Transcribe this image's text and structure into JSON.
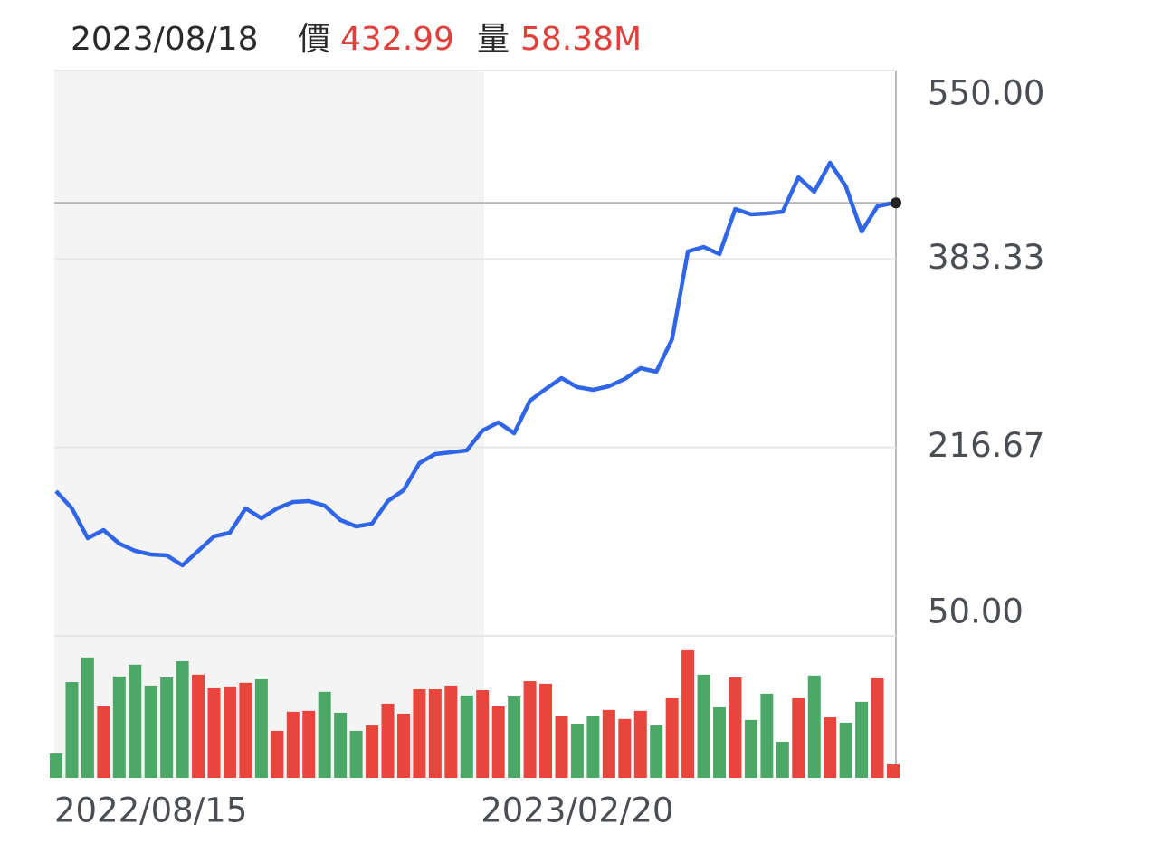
{
  "chart_data": {
    "type": "price-volume",
    "header": {
      "date": "2023/08/18",
      "price_label": "價",
      "price": 432.99,
      "volume_label": "量",
      "volume": "58.38M"
    },
    "categories": [
      "2022/08/15",
      null,
      null,
      null,
      null,
      null,
      null,
      null,
      null,
      null,
      null,
      null,
      null,
      null,
      null,
      null,
      null,
      null,
      null,
      null,
      null,
      null,
      null,
      null,
      null,
      null,
      null,
      "2023/02/20",
      null,
      null,
      null,
      null,
      null,
      null,
      null,
      null,
      null,
      null,
      null,
      null,
      null,
      null,
      null,
      null,
      null,
      null,
      null,
      null,
      null,
      null,
      null,
      null,
      null,
      null
    ],
    "series": [
      {
        "name": "價",
        "color": "#2f65e8",
        "values": [
          178,
          162.8,
          136.4,
          143.6,
          131.6,
          125.2,
          122,
          121.2,
          112.4,
          125.2,
          138,
          141.2,
          162.8,
          154,
          162.8,
          168.4,
          169.2,
          165.2,
          152.4,
          146.8,
          149.2,
          169.2,
          178.8,
          202.8,
          210.8,
          212.4,
          214,
          231.6,
          238.8,
          229.2,
          258,
          268.4,
          278,
          270,
          267.6,
          270.8,
          277.2,
          286.8,
          283.6,
          312.4,
          390,
          394,
          387.6,
          427.6,
          422.8,
          423.6,
          425.2,
          455.6,
          442.8,
          468.4,
          447.6,
          407.6,
          430,
          432.99
        ]
      },
      {
        "name": "量",
        "colors": [
          "#4ca866",
          "#4ca866",
          "#4ca866",
          "#e8453c",
          "#4ca866",
          "#4ca866",
          "#4ca866",
          "#4ca866",
          "#4ca866",
          "#e8453c",
          "#e8453c",
          "#e8453c",
          "#e8453c",
          "#4ca866",
          "#e8453c",
          "#e8453c",
          "#e8453c",
          "#4ca866",
          "#4ca866",
          "#4ca866",
          "#e8453c",
          "#e8453c",
          "#e8453c",
          "#e8453c",
          "#e8453c",
          "#e8453c",
          "#4ca866",
          "#e8453c",
          "#e8453c",
          "#4ca866",
          "#e8453c",
          "#e8453c",
          "#e8453c",
          "#4ca866",
          "#4ca866",
          "#e8453c",
          "#e8453c",
          "#e8453c",
          "#4ca866",
          "#e8453c",
          "#e8453c",
          "#4ca866",
          "#4ca866",
          "#e8453c",
          "#4ca866",
          "#4ca866",
          "#4ca866",
          "#e8453c",
          "#4ca866",
          "#e8453c",
          "#4ca866",
          "#4ca866",
          "#e8453c",
          "#e8453c"
        ],
        "values": [
          105,
          413,
          519,
          308,
          437,
          488,
          398,
          433,
          503,
          445,
          386,
          394,
          410,
          425,
          203,
          285,
          289,
          371,
          281,
          203,
          226,
          320,
          277,
          382,
          382,
          398,
          355,
          378,
          308,
          351,
          417,
          406,
          265,
          234,
          265,
          293,
          254,
          289,
          226,
          343,
          550,
          445,
          304,
          433,
          250,
          363,
          156,
          343,
          441,
          261,
          238,
          328,
          429,
          58.38
        ]
      }
    ],
    "ylim": [
      50,
      550
    ],
    "yticks": [
      {
        "value": 550,
        "label": "550.00"
      },
      {
        "value": 383.33,
        "label": "383.33"
      },
      {
        "value": 216.67,
        "label": "216.67"
      },
      {
        "value": 50,
        "label": "50.00"
      }
    ],
    "volume_ylim": [
      0,
      612
    ],
    "grid": true
  }
}
